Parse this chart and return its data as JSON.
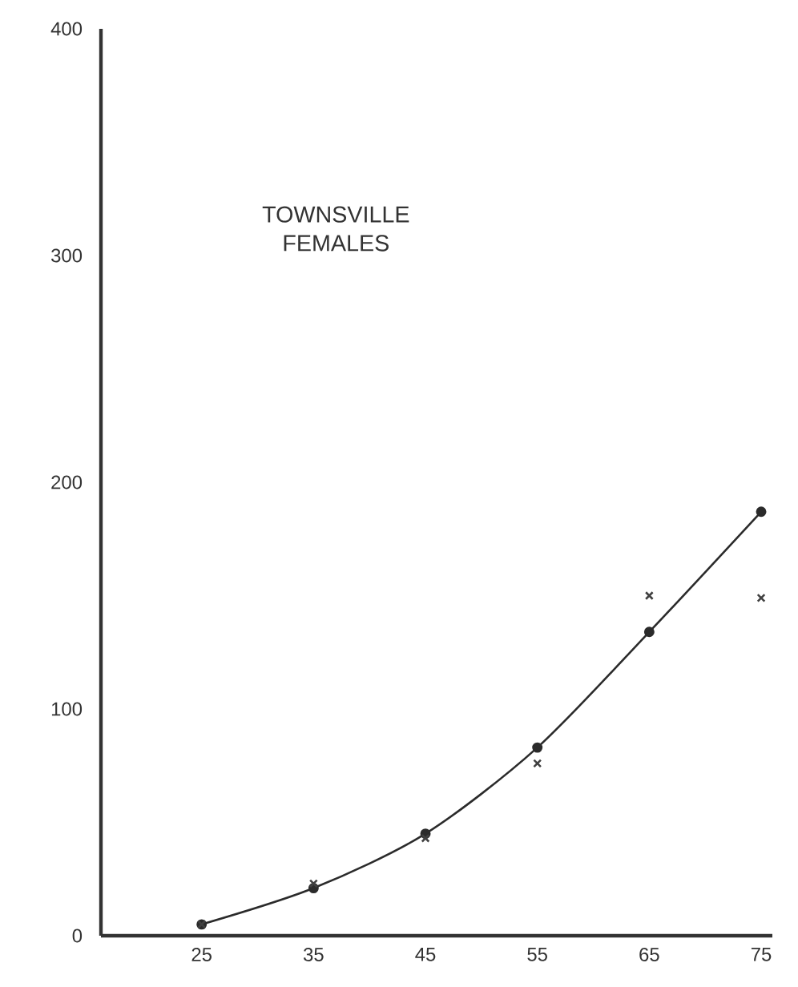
{
  "chart_data": {
    "type": "line",
    "title": "TOWNSVILLE FEMALES",
    "categories": [
      "25",
      "35",
      "45",
      "55",
      "65",
      "75"
    ],
    "series": [
      {
        "color": "#2b2b2b",
        "marker": "circle",
        "values": [
          5,
          21,
          45,
          83,
          134,
          187
        ]
      },
      {
        "type": "scatter",
        "color": "#404040",
        "marker": "cross",
        "values": [
          5,
          23,
          43,
          76,
          150,
          149
        ]
      }
    ],
    "ylim": [
      0,
      400
    ],
    "yticks": [
      0,
      100,
      200,
      300,
      400
    ],
    "grid": false
  }
}
